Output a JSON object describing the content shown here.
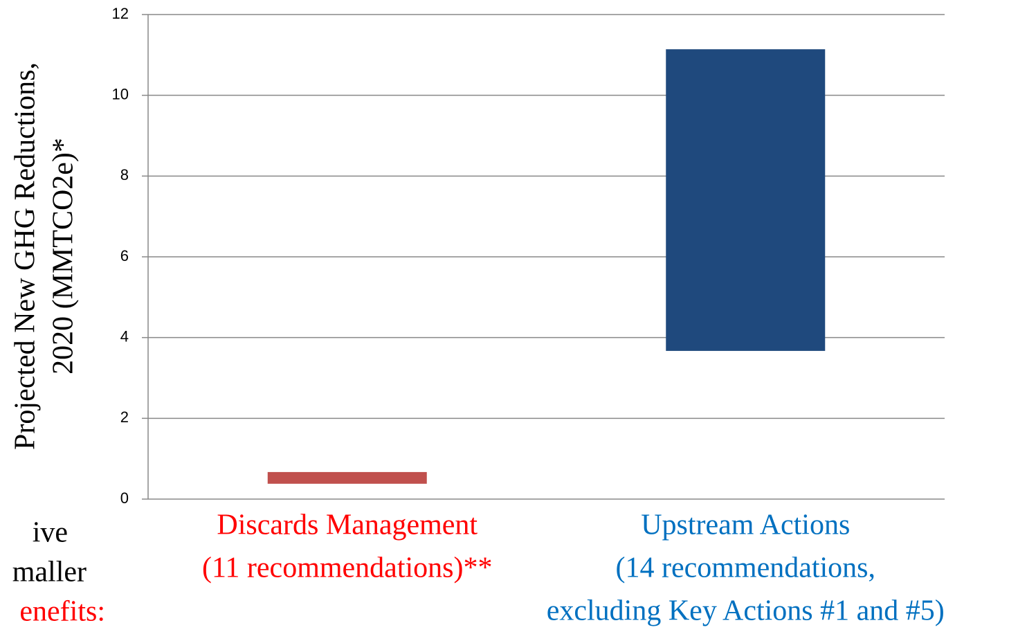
{
  "chart_data": {
    "type": "floating_bar",
    "y_label": [
      "Projected New GHG Reductions,",
      "2020 (MMTCO2e)*"
    ],
    "categories": [
      [
        "Discards Management",
        "(11 recommendations)**"
      ],
      [
        "Upstream Actions",
        "(14 recommendations,",
        "excluding Key Actions #1 and #5)"
      ]
    ],
    "category_colors": [
      "#ff0000",
      "#0070c0"
    ],
    "low": [
      0.38,
      3.67
    ],
    "high": [
      0.67,
      11.14
    ],
    "colors": [
      "#c0504d",
      "#1f497d"
    ],
    "ylim": [
      0,
      12
    ],
    "yticks": [
      0,
      2,
      4,
      6,
      8,
      10,
      12
    ],
    "grid": true,
    "side_text": [
      "ive",
      "maller",
      "enefits:"
    ]
  }
}
